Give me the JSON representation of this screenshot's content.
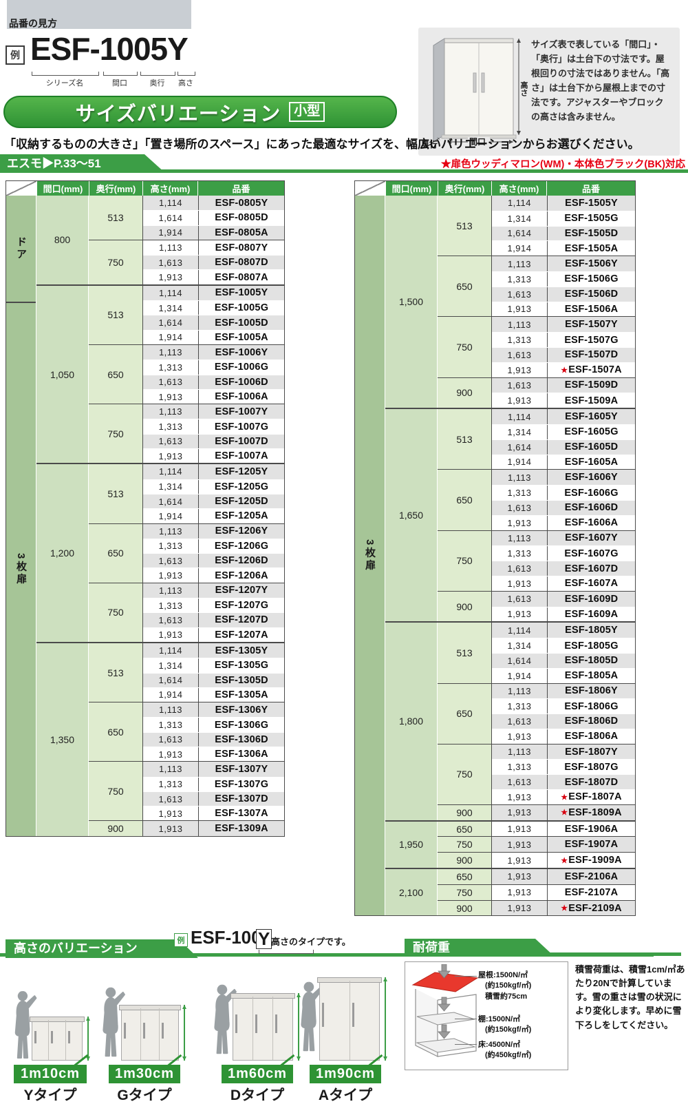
{
  "page": {
    "tag_label": "品番の見方",
    "example": {
      "rei": "例",
      "code": "ESF-1005Y",
      "labels": [
        "シリーズ名",
        "間口",
        "奥行",
        "高さ"
      ]
    },
    "info_box": {
      "text": "サイズ表で表している「間口」・「奥行」は土台下の寸法です。屋根回りの寸法ではありません。「高さ」は土台下から屋根上までの寸法です。アジャスターやブロックの高さは含みません。",
      "dim_labels": {
        "height": "高さ",
        "width": "間口",
        "depth": "奥行"
      }
    },
    "banner": {
      "title": "サイズバリエーション",
      "badge": "小型"
    },
    "lead": "「収納するものの大きさ」「置き場所のスペース」にあった最適なサイズを、幅広いバリエーションからお選びください。",
    "series_tab": "エスモ▶P.33〜51",
    "color_note": "★扉色ウッディマロン(WM)・本体色ブラック(BK)対応"
  },
  "table_headers": [
    "間口(mm)",
    "奥行(mm)",
    "高さ(mm)",
    "品番"
  ],
  "tables": [
    {
      "sections": [
        {
          "label": "ドア",
          "rows": 6
        },
        {
          "label": "3枚扉",
          "rows": 37
        }
      ],
      "groups": [
        {
          "w": "800",
          "subs": [
            {
              "d": "513",
              "rows": [
                {
                  "h": "1,114",
                  "p": "ESF-0805Y"
                },
                {
                  "h": "1,614",
                  "p": "ESF-0805D"
                },
                {
                  "h": "1,914",
                  "p": "ESF-0805A"
                }
              ]
            },
            {
              "d": "750",
              "rows": [
                {
                  "h": "1,113",
                  "p": "ESF-0807Y"
                },
                {
                  "h": "1,613",
                  "p": "ESF-0807D"
                },
                {
                  "h": "1,913",
                  "p": "ESF-0807A"
                }
              ]
            }
          ]
        },
        {
          "w": "1,050",
          "subs": [
            {
              "d": "513",
              "rows": [
                {
                  "h": "1,114",
                  "p": "ESF-1005Y"
                },
                {
                  "h": "1,314",
                  "p": "ESF-1005G"
                },
                {
                  "h": "1,614",
                  "p": "ESF-1005D"
                },
                {
                  "h": "1,914",
                  "p": "ESF-1005A"
                }
              ]
            },
            {
              "d": "650",
              "rows": [
                {
                  "h": "1,113",
                  "p": "ESF-1006Y"
                },
                {
                  "h": "1,313",
                  "p": "ESF-1006G"
                },
                {
                  "h": "1,613",
                  "p": "ESF-1006D"
                },
                {
                  "h": "1,913",
                  "p": "ESF-1006A"
                }
              ]
            },
            {
              "d": "750",
              "rows": [
                {
                  "h": "1,113",
                  "p": "ESF-1007Y"
                },
                {
                  "h": "1,313",
                  "p": "ESF-1007G"
                },
                {
                  "h": "1,613",
                  "p": "ESF-1007D"
                },
                {
                  "h": "1,913",
                  "p": "ESF-1007A"
                }
              ]
            }
          ]
        },
        {
          "w": "1,200",
          "subs": [
            {
              "d": "513",
              "rows": [
                {
                  "h": "1,114",
                  "p": "ESF-1205Y"
                },
                {
                  "h": "1,314",
                  "p": "ESF-1205G"
                },
                {
                  "h": "1,614",
                  "p": "ESF-1205D"
                },
                {
                  "h": "1,914",
                  "p": "ESF-1205A"
                }
              ]
            },
            {
              "d": "650",
              "rows": [
                {
                  "h": "1,113",
                  "p": "ESF-1206Y"
                },
                {
                  "h": "1,313",
                  "p": "ESF-1206G"
                },
                {
                  "h": "1,613",
                  "p": "ESF-1206D"
                },
                {
                  "h": "1,913",
                  "p": "ESF-1206A"
                }
              ]
            },
            {
              "d": "750",
              "rows": [
                {
                  "h": "1,113",
                  "p": "ESF-1207Y"
                },
                {
                  "h": "1,313",
                  "p": "ESF-1207G"
                },
                {
                  "h": "1,613",
                  "p": "ESF-1207D"
                },
                {
                  "h": "1,913",
                  "p": "ESF-1207A"
                }
              ]
            }
          ]
        },
        {
          "w": "1,350",
          "subs": [
            {
              "d": "513",
              "rows": [
                {
                  "h": "1,114",
                  "p": "ESF-1305Y"
                },
                {
                  "h": "1,314",
                  "p": "ESF-1305G"
                },
                {
                  "h": "1,614",
                  "p": "ESF-1305D"
                },
                {
                  "h": "1,914",
                  "p": "ESF-1305A"
                }
              ]
            },
            {
              "d": "650",
              "rows": [
                {
                  "h": "1,113",
                  "p": "ESF-1306Y"
                },
                {
                  "h": "1,313",
                  "p": "ESF-1306G"
                },
                {
                  "h": "1,613",
                  "p": "ESF-1306D"
                },
                {
                  "h": "1,913",
                  "p": "ESF-1306A"
                }
              ]
            },
            {
              "d": "750",
              "rows": [
                {
                  "h": "1,113",
                  "p": "ESF-1307Y"
                },
                {
                  "h": "1,313",
                  "p": "ESF-1307G"
                },
                {
                  "h": "1,613",
                  "p": "ESF-1307D"
                },
                {
                  "h": "1,913",
                  "p": "ESF-1307A"
                }
              ]
            },
            {
              "d": "900",
              "rows": [
                {
                  "h": "1,913",
                  "p": "ESF-1309A"
                }
              ]
            }
          ]
        }
      ]
    },
    {
      "sections": [
        {
          "label": "3枚扉",
          "rows": 47
        }
      ],
      "groups": [
        {
          "w": "1,500",
          "subs": [
            {
              "d": "513",
              "rows": [
                {
                  "h": "1,114",
                  "p": "ESF-1505Y"
                },
                {
                  "h": "1,314",
                  "p": "ESF-1505G"
                },
                {
                  "h": "1,614",
                  "p": "ESF-1505D"
                },
                {
                  "h": "1,914",
                  "p": "ESF-1505A"
                }
              ]
            },
            {
              "d": "650",
              "rows": [
                {
                  "h": "1,113",
                  "p": "ESF-1506Y"
                },
                {
                  "h": "1,313",
                  "p": "ESF-1506G"
                },
                {
                  "h": "1,613",
                  "p": "ESF-1506D"
                },
                {
                  "h": "1,913",
                  "p": "ESF-1506A"
                }
              ]
            },
            {
              "d": "750",
              "rows": [
                {
                  "h": "1,113",
                  "p": "ESF-1507Y"
                },
                {
                  "h": "1,313",
                  "p": "ESF-1507G"
                },
                {
                  "h": "1,613",
                  "p": "ESF-1507D"
                },
                {
                  "h": "1,913",
                  "p": "ESF-1507A",
                  "star": true
                }
              ]
            },
            {
              "d": "900",
              "rows": [
                {
                  "h": "1,613",
                  "p": "ESF-1509D"
                },
                {
                  "h": "1,913",
                  "p": "ESF-1509A"
                }
              ]
            }
          ]
        },
        {
          "w": "1,650",
          "subs": [
            {
              "d": "513",
              "rows": [
                {
                  "h": "1,114",
                  "p": "ESF-1605Y"
                },
                {
                  "h": "1,314",
                  "p": "ESF-1605G"
                },
                {
                  "h": "1,614",
                  "p": "ESF-1605D"
                },
                {
                  "h": "1,914",
                  "p": "ESF-1605A"
                }
              ]
            },
            {
              "d": "650",
              "rows": [
                {
                  "h": "1,113",
                  "p": "ESF-1606Y"
                },
                {
                  "h": "1,313",
                  "p": "ESF-1606G"
                },
                {
                  "h": "1,613",
                  "p": "ESF-1606D"
                },
                {
                  "h": "1,913",
                  "p": "ESF-1606A"
                }
              ]
            },
            {
              "d": "750",
              "rows": [
                {
                  "h": "1,113",
                  "p": "ESF-1607Y"
                },
                {
                  "h": "1,313",
                  "p": "ESF-1607G"
                },
                {
                  "h": "1,613",
                  "p": "ESF-1607D"
                },
                {
                  "h": "1,913",
                  "p": "ESF-1607A"
                }
              ]
            },
            {
              "d": "900",
              "rows": [
                {
                  "h": "1,613",
                  "p": "ESF-1609D"
                },
                {
                  "h": "1,913",
                  "p": "ESF-1609A"
                }
              ]
            }
          ]
        },
        {
          "w": "1,800",
          "subs": [
            {
              "d": "513",
              "rows": [
                {
                  "h": "1,114",
                  "p": "ESF-1805Y"
                },
                {
                  "h": "1,314",
                  "p": "ESF-1805G"
                },
                {
                  "h": "1,614",
                  "p": "ESF-1805D"
                },
                {
                  "h": "1,914",
                  "p": "ESF-1805A"
                }
              ]
            },
            {
              "d": "650",
              "rows": [
                {
                  "h": "1,113",
                  "p": "ESF-1806Y"
                },
                {
                  "h": "1,313",
                  "p": "ESF-1806G"
                },
                {
                  "h": "1,613",
                  "p": "ESF-1806D"
                },
                {
                  "h": "1,913",
                  "p": "ESF-1806A"
                }
              ]
            },
            {
              "d": "750",
              "rows": [
                {
                  "h": "1,113",
                  "p": "ESF-1807Y"
                },
                {
                  "h": "1,313",
                  "p": "ESF-1807G"
                },
                {
                  "h": "1,613",
                  "p": "ESF-1807D"
                },
                {
                  "h": "1,913",
                  "p": "ESF-1807A",
                  "star": true
                }
              ]
            },
            {
              "d": "900",
              "rows": [
                {
                  "h": "1,913",
                  "p": "ESF-1809A",
                  "star": true
                }
              ]
            }
          ]
        },
        {
          "w": "1,950",
          "subs": [
            {
              "d": "650",
              "rows": [
                {
                  "h": "1,913",
                  "p": "ESF-1906A"
                }
              ]
            },
            {
              "d": "750",
              "rows": [
                {
                  "h": "1,913",
                  "p": "ESF-1907A"
                }
              ]
            },
            {
              "d": "900",
              "rows": [
                {
                  "h": "1,913",
                  "p": "ESF-1909A",
                  "star": true
                }
              ]
            }
          ]
        },
        {
          "w": "2,100",
          "subs": [
            {
              "d": "650",
              "rows": [
                {
                  "h": "1,913",
                  "p": "ESF-2106A"
                }
              ]
            },
            {
              "d": "750",
              "rows": [
                {
                  "h": "1,913",
                  "p": "ESF-2107A"
                }
              ]
            },
            {
              "d": "900",
              "rows": [
                {
                  "h": "1,913",
                  "p": "ESF-2109A",
                  "star": true
                }
              ]
            }
          ]
        }
      ]
    }
  ],
  "height_variation": {
    "title": "高さのバリエーション",
    "example": {
      "rei": "例",
      "code": "ESF-1005",
      "suffix": "Y",
      "note": "高さのタイプです。"
    },
    "types": [
      {
        "size": "1m10cm",
        "label": "Yタイプ"
      },
      {
        "size": "1m30cm",
        "label": "Gタイプ"
      },
      {
        "size": "1m60cm",
        "label": "Dタイプ"
      },
      {
        "size": "1m90cm",
        "label": "Aタイプ"
      }
    ]
  },
  "load": {
    "title": "耐荷重",
    "labels": [
      {
        "lines": [
          "屋根:1500N/㎡",
          "(約150kgf/㎡)",
          "積雪約75cm"
        ]
      },
      {
        "lines": [
          "棚:1500N/㎡",
          "(約150kgf/㎡)"
        ]
      },
      {
        "lines": [
          "床:4500N/㎡",
          "(約450kgf/㎡)"
        ]
      }
    ],
    "note": "積雪荷重は、積雪1cm/㎡あたり20Nで計算しています。雪の重さは雪の状況により変化します。早めに雪下ろしをしてください。"
  },
  "colors": {
    "accent_green": "#3c9e46",
    "dark_green": "#2e9334",
    "banner_border": "#1e8026",
    "label_col_green": "#a6c597",
    "maguchi_green": "#cde0bf",
    "okuyuki_green": "#dfeccf",
    "row_gray": "#e2e2e2",
    "note_red": "#e60012",
    "star_red": "#d7000f",
    "roof_red": "#e8382d",
    "top_box_gray": "#c9ced3",
    "info_box_gray": "#eaeaea"
  }
}
